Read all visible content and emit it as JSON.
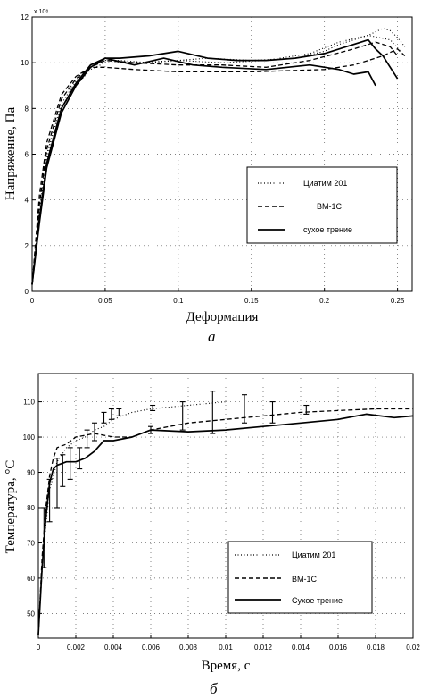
{
  "chart_data": [
    {
      "type": "line",
      "panel_label": "а",
      "xlabel": "Деформация",
      "ylabel": "Напряжение, Па",
      "y_exponent_label": "x 10⁸",
      "xlim": [
        0,
        0.26
      ],
      "ylim": [
        0,
        12
      ],
      "x_ticks": [
        0,
        0.05,
        0.1,
        0.15,
        0.2,
        0.25
      ],
      "x_tick_labels": [
        "0",
        "0.05",
        "0.1",
        "0.15",
        "0.2",
        "0.25"
      ],
      "y_ticks": [
        0,
        2,
        4,
        6,
        8,
        10,
        12
      ],
      "y_tick_labels": [
        "0",
        "2",
        "4",
        "6",
        "8",
        "10",
        "12"
      ],
      "legend_position": "lower-right",
      "legend": [
        "Циатим 201",
        "ВМ-1С",
        "сухое трение"
      ],
      "series": [
        {
          "name": "Циатим 201",
          "style": "dotted",
          "x": [
            0,
            0.005,
            0.01,
            0.02,
            0.03,
            0.04,
            0.05,
            0.06,
            0.08,
            0.1,
            0.12,
            0.15,
            0.18,
            0.2,
            0.21,
            0.22,
            0.23,
            0.24,
            0.245,
            0.25,
            0.255
          ],
          "y": [
            0.3,
            3.6,
            6.0,
            8.2,
            9.2,
            9.8,
            10.1,
            10.1,
            10.0,
            10.1,
            10.2,
            10.1,
            10.2,
            10.5,
            10.8,
            11.0,
            11.2,
            11.5,
            11.4,
            11.1,
            10.7
          ]
        },
        {
          "name": "Циатим 201",
          "style": "dotted",
          "x": [
            0,
            0.005,
            0.01,
            0.02,
            0.03,
            0.04,
            0.05,
            0.07,
            0.1,
            0.13,
            0.16,
            0.19,
            0.21,
            0.23,
            0.245,
            0.252
          ],
          "y": [
            0.3,
            3.3,
            5.8,
            8.0,
            9.0,
            9.7,
            10.0,
            10.0,
            10.1,
            10.0,
            10.1,
            10.4,
            10.9,
            11.2,
            11.0,
            10.5
          ]
        },
        {
          "name": "ВМ-1С",
          "style": "dashed",
          "x": [
            0,
            0.005,
            0.01,
            0.02,
            0.03,
            0.04,
            0.05,
            0.07,
            0.1,
            0.15,
            0.2,
            0.22,
            0.24,
            0.25,
            0.255
          ],
          "y": [
            0.3,
            4.2,
            6.5,
            8.6,
            9.4,
            9.8,
            9.8,
            9.7,
            9.6,
            9.6,
            9.7,
            9.9,
            10.3,
            10.6,
            10.3
          ]
        },
        {
          "name": "ВМ-1С",
          "style": "dashed",
          "x": [
            0,
            0.005,
            0.01,
            0.02,
            0.03,
            0.04,
            0.05,
            0.07,
            0.1,
            0.13,
            0.16,
            0.19,
            0.22,
            0.235,
            0.245,
            0.25
          ],
          "y": [
            0.3,
            3.8,
            6.2,
            8.4,
            9.3,
            9.8,
            10.1,
            10.0,
            9.9,
            9.9,
            9.8,
            10.1,
            10.6,
            10.9,
            10.7,
            10.3
          ]
        },
        {
          "name": "сухое трение",
          "style": "solid",
          "x": [
            0,
            0.005,
            0.01,
            0.02,
            0.03,
            0.04,
            0.05,
            0.06,
            0.08,
            0.1,
            0.12,
            0.14,
            0.16,
            0.18,
            0.2,
            0.22,
            0.23,
            0.235,
            0.24,
            0.245,
            0.25
          ],
          "y": [
            0.3,
            3.0,
            5.4,
            7.8,
            9.0,
            9.8,
            10.2,
            10.2,
            10.3,
            10.5,
            10.2,
            10.1,
            10.1,
            10.2,
            10.4,
            10.8,
            11.0,
            10.6,
            10.3,
            9.8,
            9.3
          ]
        },
        {
          "name": "сухое трение",
          "style": "solid",
          "x": [
            0,
            0.005,
            0.01,
            0.02,
            0.03,
            0.04,
            0.05,
            0.07,
            0.09,
            0.11,
            0.13,
            0.16,
            0.19,
            0.21,
            0.22,
            0.23,
            0.235
          ],
          "y": [
            0.3,
            3.2,
            5.6,
            8.0,
            9.1,
            9.9,
            10.2,
            9.9,
            10.2,
            9.9,
            9.8,
            9.7,
            9.9,
            9.7,
            9.5,
            9.6,
            9.0
          ]
        }
      ]
    },
    {
      "type": "line",
      "panel_label": "б",
      "xlabel": "Время, с",
      "ylabel": "Температура, °C",
      "xlim": [
        0,
        0.02
      ],
      "ylim": [
        43,
        118
      ],
      "x_ticks": [
        0,
        0.002,
        0.004,
        0.006,
        0.008,
        0.01,
        0.012,
        0.014,
        0.016,
        0.018,
        0.02
      ],
      "x_tick_labels": [
        "0",
        "0.002",
        "0.004",
        "0.006",
        "0.008",
        "0.01",
        "0.012",
        "0.014",
        "0.016",
        "0.018",
        "0.02"
      ],
      "y_ticks": [
        50,
        60,
        70,
        80,
        90,
        100,
        110
      ],
      "y_tick_labels": [
        "50",
        "60",
        "70",
        "80",
        "90",
        "100",
        "110"
      ],
      "legend_position": "lower-right",
      "legend": [
        "Циатим 201",
        "ВМ-1С",
        "Сухое трение"
      ],
      "series": [
        {
          "name": "Циатим 201",
          "style": "dotted",
          "x": [
            0,
            0.0002,
            0.0004,
            0.0006,
            0.001,
            0.0015,
            0.002,
            0.0025,
            0.003,
            0.0035,
            0.004,
            0.005,
            0.006,
            0.008,
            0.01
          ],
          "y": [
            44,
            62,
            75,
            85,
            93,
            97,
            99,
            100,
            102,
            103,
            105,
            107,
            108,
            109,
            110
          ]
        },
        {
          "name": "ВМ-1С",
          "style": "dashed",
          "x": [
            0,
            0.0002,
            0.0004,
            0.0006,
            0.0008,
            0.001,
            0.0015,
            0.002,
            0.003,
            0.004,
            0.005,
            0.006,
            0.008,
            0.01,
            0.012,
            0.014,
            0.016,
            0.018,
            0.02
          ],
          "y": [
            44,
            66,
            80,
            89,
            94,
            97,
            98,
            100,
            101,
            100,
            100,
            102,
            104,
            105,
            106,
            107,
            107.5,
            108,
            108
          ]
        },
        {
          "name": "Сухое трение",
          "style": "solid",
          "x": [
            0,
            0.0002,
            0.0004,
            0.0006,
            0.0008,
            0.001,
            0.0015,
            0.002,
            0.0025,
            0.003,
            0.0035,
            0.004,
            0.005,
            0.006,
            0.008,
            0.01,
            0.012,
            0.014,
            0.016,
            0.0175,
            0.019,
            0.02
          ],
          "y": [
            44,
            63,
            77,
            87,
            91,
            92,
            93,
            93,
            94,
            96,
            99,
            99,
            100,
            102,
            101.5,
            102,
            103,
            104,
            105,
            106.5,
            105.5,
            106
          ]
        }
      ],
      "error_bars": [
        {
          "x": 0.0003,
          "low": 63,
          "high": 80
        },
        {
          "x": 0.0006,
          "low": 76,
          "high": 88
        },
        {
          "x": 0.001,
          "low": 80,
          "high": 94
        },
        {
          "x": 0.0013,
          "low": 86,
          "high": 95
        },
        {
          "x": 0.0017,
          "low": 88,
          "high": 97
        },
        {
          "x": 0.0022,
          "low": 91,
          "high": 97
        },
        {
          "x": 0.0026,
          "low": 97,
          "high": 102
        },
        {
          "x": 0.003,
          "low": 99,
          "high": 104
        },
        {
          "x": 0.0035,
          "low": 104,
          "high": 107
        },
        {
          "x": 0.0039,
          "low": 105,
          "high": 108
        },
        {
          "x": 0.0043,
          "low": 106,
          "high": 108
        },
        {
          "x": 0.006,
          "low": 101,
          "high": 103
        },
        {
          "x": 0.0061,
          "low": 107.5,
          "high": 109
        },
        {
          "x": 0.0077,
          "low": 102,
          "high": 110
        },
        {
          "x": 0.0093,
          "low": 101,
          "high": 113
        },
        {
          "x": 0.011,
          "low": 104,
          "high": 112
        },
        {
          "x": 0.0125,
          "low": 104,
          "high": 110
        },
        {
          "x": 0.0143,
          "low": 106.5,
          "high": 109
        }
      ]
    }
  ]
}
